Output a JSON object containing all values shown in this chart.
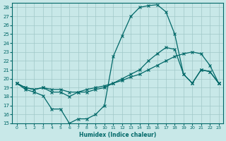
{
  "xlabel": "Humidex (Indice chaleur)",
  "ylabel": "",
  "xlim": [
    -0.5,
    23.5
  ],
  "ylim": [
    15,
    28.5
  ],
  "yticks": [
    15,
    16,
    17,
    18,
    19,
    20,
    21,
    22,
    23,
    24,
    25,
    26,
    27,
    28
  ],
  "xticks": [
    0,
    1,
    2,
    3,
    4,
    5,
    6,
    7,
    8,
    9,
    10,
    11,
    12,
    13,
    14,
    15,
    16,
    17,
    18,
    19,
    20,
    21,
    22,
    23
  ],
  "bg_color": "#c8e8e8",
  "grid_color": "#a0c8c8",
  "line_color": "#006868",
  "line1_x": [
    0,
    1,
    2,
    3,
    4,
    5,
    6,
    7,
    8,
    9,
    10,
    11,
    12,
    13,
    14,
    15,
    16,
    17,
    18,
    19,
    20,
    21,
    22,
    23
  ],
  "line1_y": [
    19.5,
    18.8,
    18.5,
    18.1,
    16.6,
    16.6,
    15.0,
    15.5,
    15.5,
    16.0,
    17.0,
    22.5,
    24.8,
    27.0,
    28.0,
    28.2,
    28.3,
    27.5,
    25.0,
    20.5,
    19.5,
    21.0,
    20.8,
    19.5
  ],
  "line2_x": [
    0,
    1,
    2,
    3,
    4,
    5,
    6,
    7,
    8,
    9,
    10,
    11,
    12,
    13,
    14,
    15,
    16,
    17,
    18,
    19,
    20,
    21,
    22,
    23
  ],
  "line2_y": [
    19.5,
    19.0,
    18.8,
    19.0,
    18.5,
    18.5,
    18.0,
    18.5,
    18.5,
    18.8,
    19.0,
    19.5,
    20.0,
    20.5,
    21.0,
    22.0,
    22.8,
    23.5,
    23.3,
    20.5,
    19.5,
    21.0,
    20.8,
    19.5
  ],
  "line3_x": [
    0,
    1,
    2,
    3,
    4,
    5,
    6,
    7,
    8,
    9,
    10,
    11,
    12,
    13,
    14,
    15,
    16,
    17,
    18,
    19,
    20,
    21,
    22,
    23
  ],
  "line3_y": [
    19.5,
    19.0,
    18.8,
    19.0,
    18.8,
    18.8,
    18.5,
    18.5,
    18.8,
    19.0,
    19.2,
    19.5,
    19.8,
    20.2,
    20.5,
    21.0,
    21.5,
    22.0,
    22.5,
    22.8,
    23.0,
    22.8,
    21.5,
    19.5
  ]
}
